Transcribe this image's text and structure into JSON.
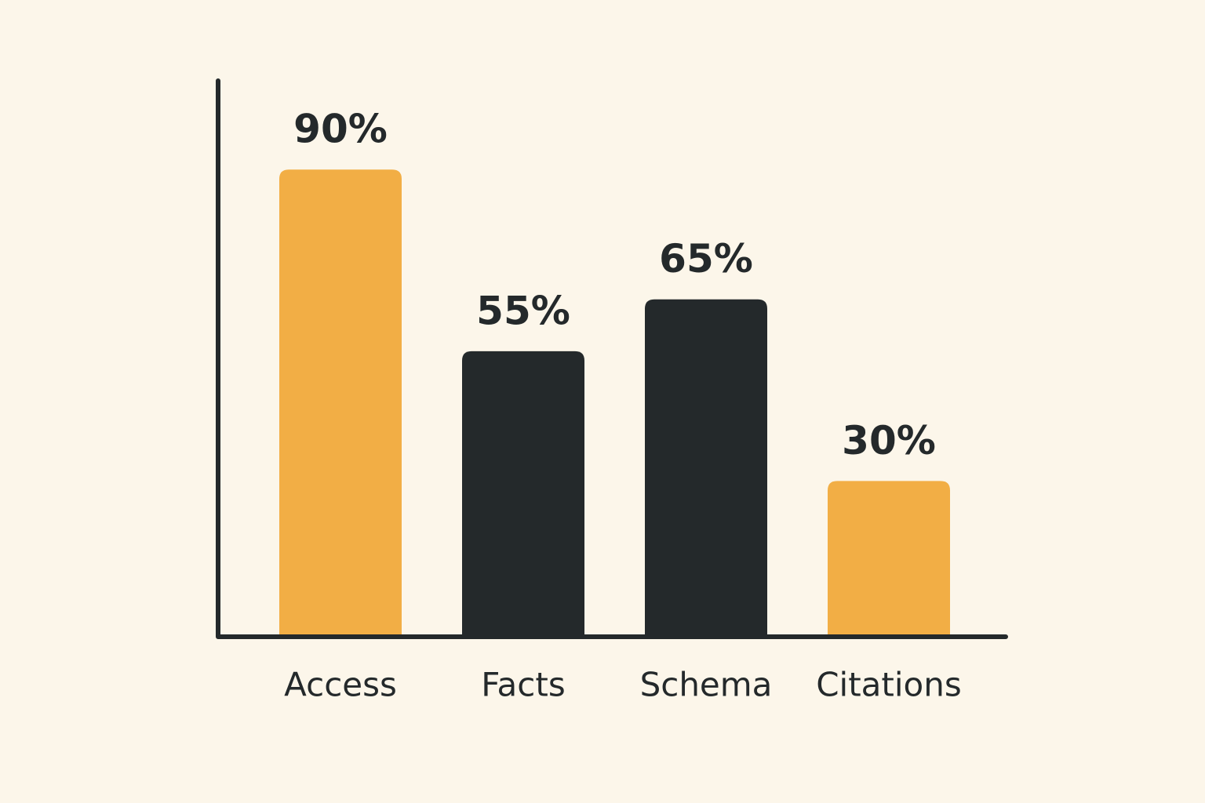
{
  "chart_data": {
    "type": "bar",
    "categories": [
      "Access",
      "Facts",
      "Schema",
      "Citations"
    ],
    "values": [
      90,
      55,
      65,
      30
    ],
    "value_labels": [
      "90%",
      "55%",
      "65%",
      "30%"
    ],
    "colors": [
      "#f2ae45",
      "#24292b",
      "#24292b",
      "#f2ae45"
    ],
    "ylim": [
      0,
      100
    ]
  }
}
